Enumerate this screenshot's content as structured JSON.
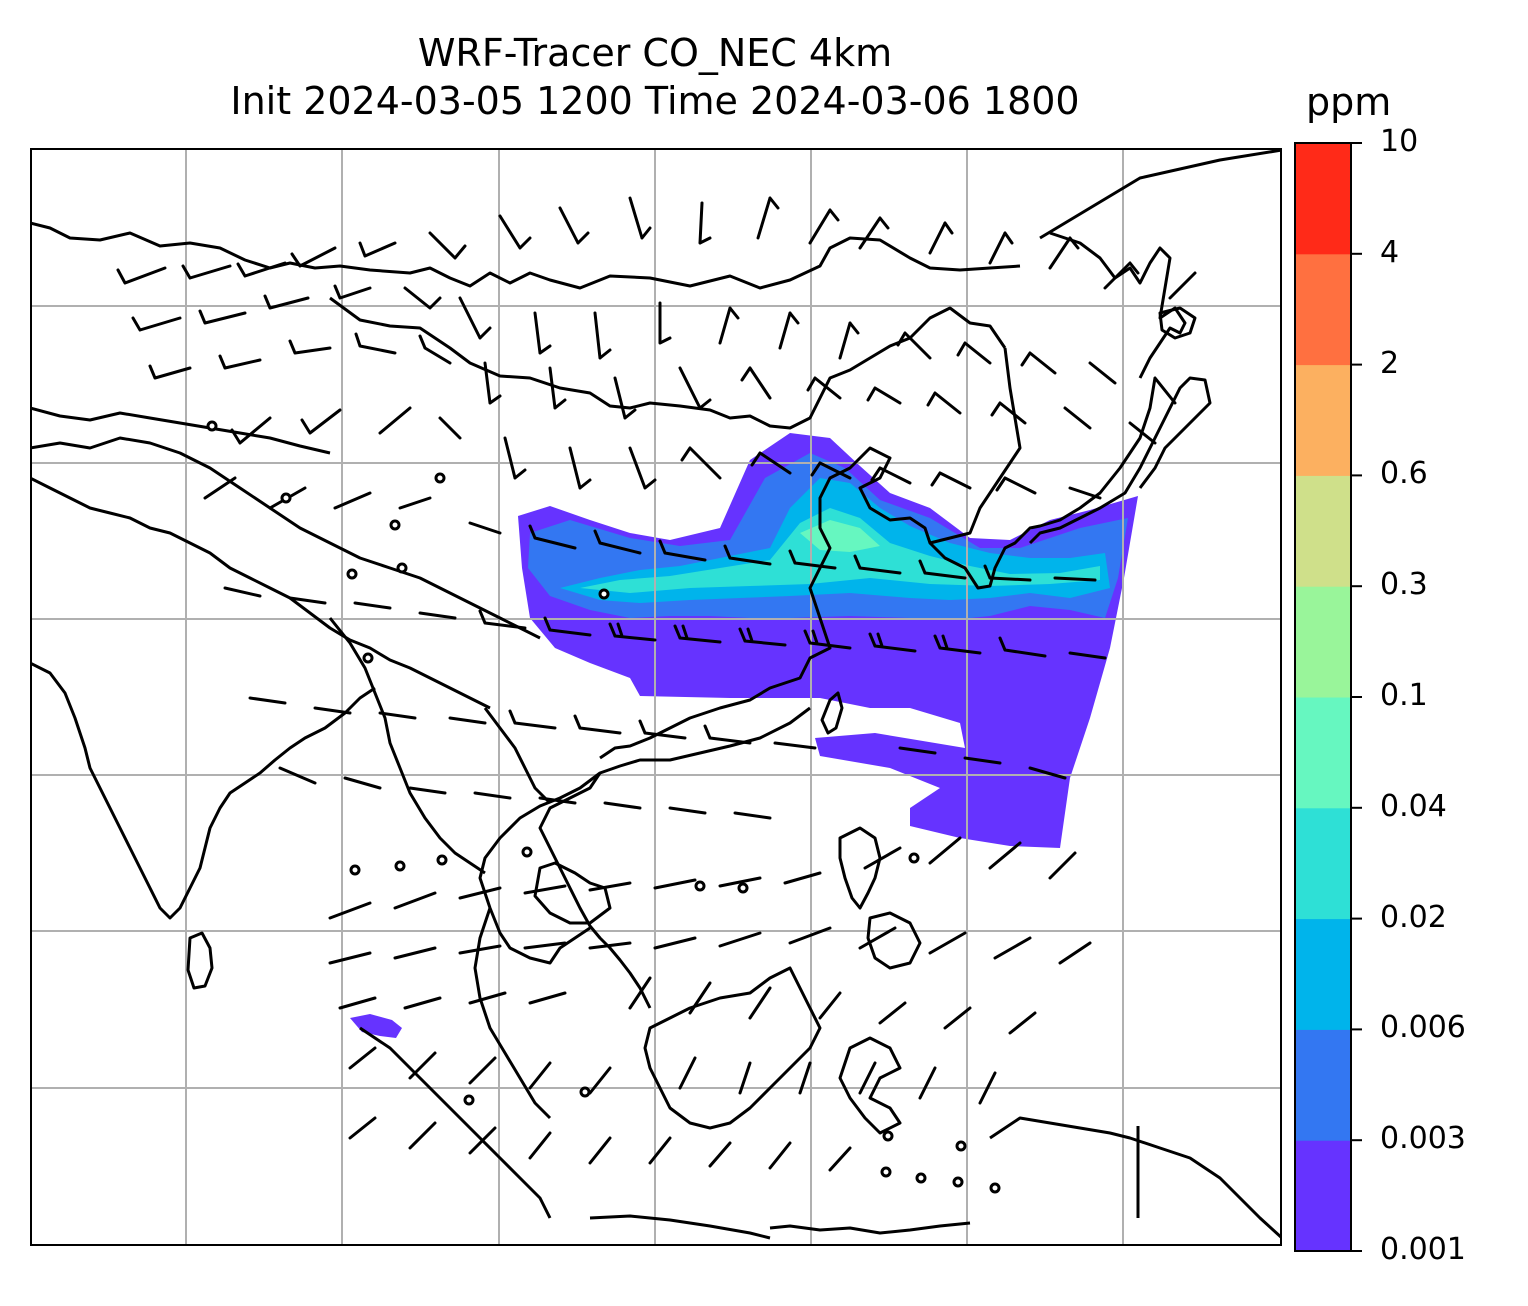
{
  "title": {
    "line1": "WRF-Tracer CO_NEC 4km",
    "line2": "Init 2024-03-05 1200 Time 2024-03-06 1800"
  },
  "colorbar": {
    "units": "ppm",
    "ticks": [
      "0.001",
      "0.003",
      "0.006",
      "0.02",
      "0.04",
      "0.1",
      "0.3",
      "0.6",
      "2",
      "4",
      "10"
    ],
    "colors": [
      "#6633ff",
      "#3377f2",
      "#00b4eb",
      "#2ee0d6",
      "#66f7c0",
      "#99f59a",
      "#cfe08a",
      "#fcb060",
      "#ff7040",
      "#ff2a18"
    ]
  },
  "map": {
    "background": "#ffffff",
    "gridline_color": "#b0b0b0",
    "coastline_color": "#000000",
    "plume_colors": {
      "outer": "#6633ff",
      "mid": "#3377f2",
      "inner": "#00b4eb",
      "core": "#2ee0d6",
      "peak": "#66f7c0"
    }
  }
}
